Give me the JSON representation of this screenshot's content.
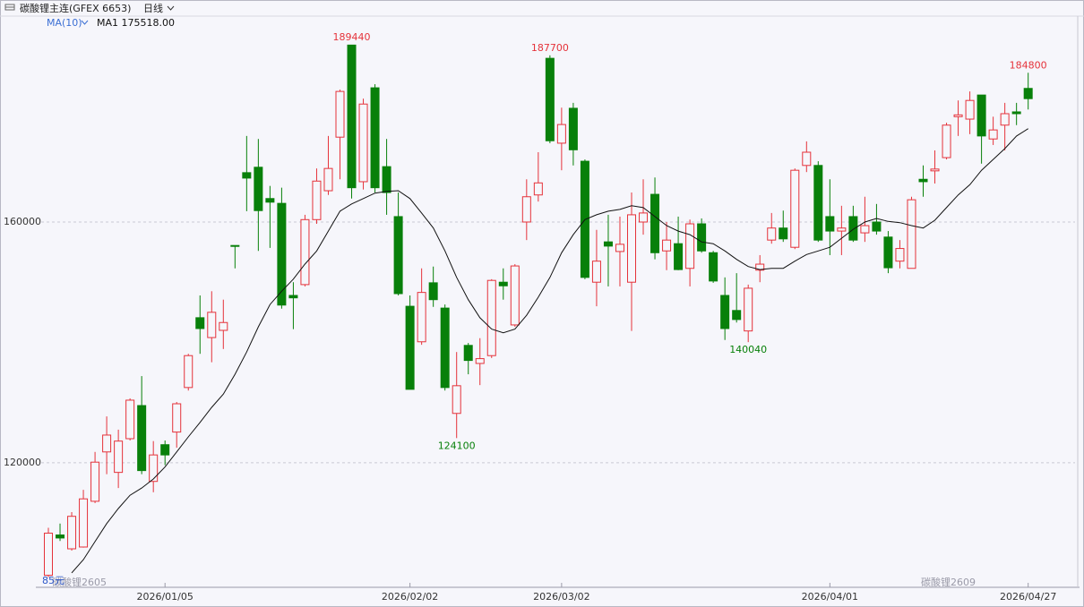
{
  "chart_data": {
    "type": "candlestick",
    "title": "碳酸锂主连(GFEX 6653)",
    "period": "日线",
    "categories": [
      null,
      null,
      null,
      null,
      null,
      null,
      null,
      null,
      null,
      null,
      "2026/01/05",
      null,
      null,
      null,
      null,
      null,
      null,
      null,
      null,
      null,
      null,
      null,
      null,
      null,
      null,
      null,
      null,
      null,
      null,
      null,
      null,
      "2026/02/02",
      null,
      null,
      null,
      null,
      null,
      null,
      null,
      null,
      null,
      null,
      null,
      null,
      "2026/03/02",
      null,
      null,
      null,
      null,
      null,
      null,
      null,
      null,
      null,
      null,
      null,
      null,
      null,
      null,
      null,
      null,
      null,
      null,
      null,
      null,
      null,
      null,
      "2026/04/01",
      null,
      null,
      null,
      null,
      null,
      null,
      null,
      null,
      null,
      null,
      null,
      null,
      null,
      null,
      null,
      null,
      "2026/04/27"
    ],
    "open": [
      101300,
      108000,
      105700,
      106000,
      113600,
      121800,
      118400,
      124000,
      129500,
      116900,
      123000,
      125100,
      132500,
      144100,
      140800,
      142000,
      156100,
      168200,
      169100,
      163900,
      163100,
      147800,
      149600,
      160400,
      165200,
      174100,
      189400,
      166700,
      182300,
      169200,
      160900,
      146000,
      140100,
      149900,
      145700,
      128200,
      139500,
      136500,
      137800,
      150000,
      142900,
      160000,
      164500,
      187200,
      173100,
      178900,
      170100,
      150000,
      156700,
      155100,
      150000,
      160000,
      164600,
      155200,
      156400,
      152300,
      159700,
      154900,
      147800,
      145300,
      141900,
      152000,
      157000,
      159000,
      155800,
      169400,
      169400,
      160900,
      158500,
      160900,
      158200,
      160000,
      157500,
      153500,
      152300,
      167100,
      168500,
      170700,
      177500,
      177100,
      181100,
      173800,
      176100,
      178300,
      182200
    ],
    "high": [
      109200,
      109900,
      111800,
      115500,
      121800,
      127700,
      125500,
      130700,
      134400,
      123600,
      123700,
      130100,
      138100,
      147800,
      148500,
      147100,
      156100,
      174300,
      173800,
      166000,
      165700,
      150000,
      161200,
      168900,
      174300,
      182000,
      189440,
      180500,
      182900,
      173800,
      164900,
      147800,
      152300,
      152600,
      146300,
      138400,
      139900,
      140700,
      150500,
      152300,
      153000,
      167100,
      171600,
      187700,
      179000,
      179800,
      170400,
      158700,
      161200,
      160900,
      164900,
      167100,
      167400,
      160000,
      160900,
      160400,
      160600,
      155200,
      150800,
      151500,
      149600,
      154500,
      161500,
      161900,
      168900,
      173400,
      170100,
      167100,
      162700,
      162700,
      164200,
      163000,
      158500,
      157000,
      164200,
      169400,
      171900,
      176500,
      180200,
      181700,
      181100,
      177500,
      179800,
      179800,
      184800
    ],
    "low": [
      101000,
      107000,
      105400,
      105900,
      113300,
      118100,
      115800,
      123700,
      118100,
      115100,
      119600,
      122500,
      132000,
      138100,
      136700,
      138900,
      152300,
      161800,
      155200,
      155700,
      145600,
      142200,
      149300,
      159700,
      164500,
      167100,
      163900,
      165400,
      164900,
      161200,
      147800,
      132200,
      139600,
      145900,
      132000,
      124100,
      134700,
      132900,
      137400,
      147100,
      142600,
      157000,
      163400,
      173100,
      168600,
      169400,
      150500,
      146000,
      149300,
      149300,
      141900,
      157900,
      153800,
      152000,
      152000,
      149300,
      154900,
      149900,
      140400,
      143300,
      140040,
      150000,
      156400,
      156700,
      155500,
      168300,
      156700,
      154500,
      154500,
      156700,
      156700,
      157900,
      151500,
      152300,
      152300,
      164200,
      166400,
      170400,
      174300,
      174600,
      169700,
      172800,
      171900,
      176100,
      178700
    ],
    "close": [
      108300,
      107500,
      111100,
      114000,
      120100,
      124600,
      123600,
      130400,
      118700,
      121300,
      121300,
      129800,
      137800,
      142300,
      145000,
      143300,
      156100,
      167300,
      161900,
      163300,
      146200,
      147400,
      160400,
      166800,
      168900,
      181700,
      165700,
      179600,
      165700,
      164900,
      148100,
      132200,
      148300,
      147100,
      132500,
      132800,
      137000,
      137300,
      150300,
      149400,
      152700,
      164200,
      166500,
      173500,
      176200,
      172000,
      150800,
      153500,
      156000,
      156300,
      161200,
      161500,
      154900,
      157000,
      152100,
      159700,
      155200,
      150200,
      142300,
      143800,
      149000,
      153000,
      159000,
      157200,
      168600,
      171600,
      157000,
      158500,
      159000,
      157000,
      159400,
      158500,
      152400,
      155600,
      163700,
      166700,
      168800,
      176100,
      177800,
      180200,
      174300,
      175300,
      178000,
      178000,
      180500
    ],
    "up_color": "#e5323a",
    "down_color": "#08800a",
    "ma": {
      "name": "MA(10)",
      "readout": "MA1 175518.00",
      "color": "#111111",
      "values": [
        null,
        null,
        101700,
        103900,
        106900,
        109900,
        112400,
        114600,
        115800,
        117300,
        119300,
        121800,
        124300,
        126700,
        129200,
        131400,
        134700,
        138400,
        142600,
        146300,
        148500,
        150500,
        153000,
        155200,
        158500,
        161800,
        163000,
        163900,
        164800,
        165100,
        165200,
        163900,
        161500,
        159000,
        155200,
        150800,
        147100,
        144100,
        142200,
        141600,
        142200,
        144500,
        147500,
        150800,
        154900,
        157900,
        160400,
        161200,
        161800,
        162100,
        162700,
        162400,
        160900,
        159400,
        158500,
        157900,
        156700,
        156400,
        155200,
        153800,
        152600,
        152100,
        152300,
        152300,
        153500,
        154600,
        155200,
        155800,
        157300,
        158800,
        160000,
        160600,
        160100,
        159900,
        159400,
        159000,
        160300,
        162400,
        164500,
        166200,
        168600,
        170400,
        172200,
        174300,
        175518
      ]
    },
    "labeled_highs": [
      26,
      43,
      84
    ],
    "labeled_lows": [
      35,
      60
    ],
    "ylim": [
      99900,
      195700
    ],
    "yticks": [
      120000,
      160000
    ],
    "grid": true,
    "notes": {
      "unit": "85元",
      "near_contract": "碳酸锂2605",
      "far_contract": "碳酸锂2609"
    }
  }
}
